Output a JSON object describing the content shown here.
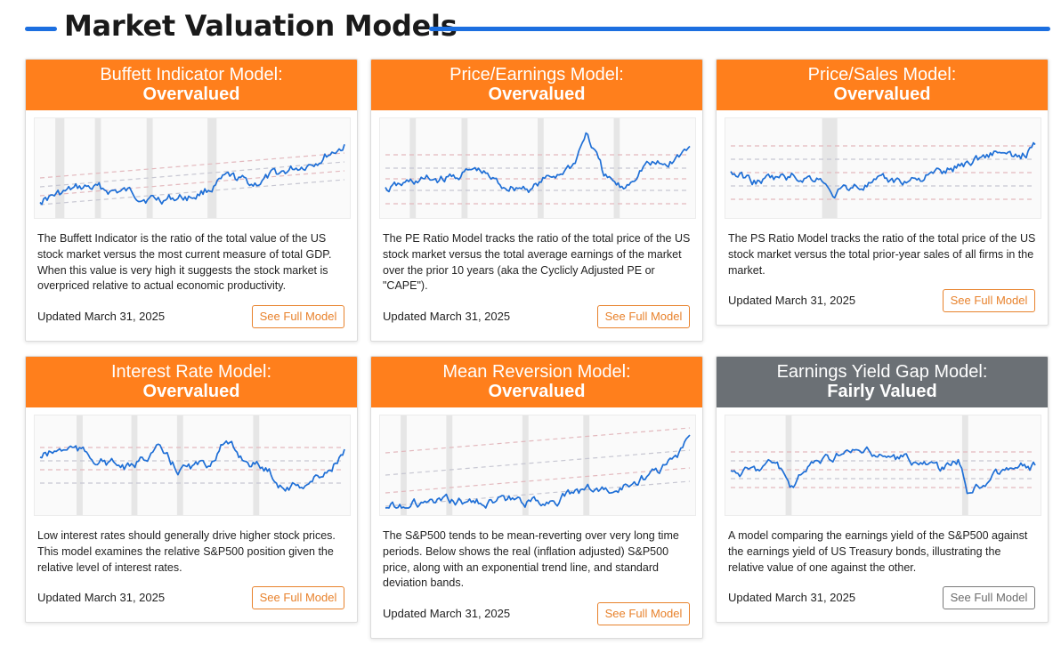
{
  "page": {
    "title": "Market Valuation Models"
  },
  "accent_colors": {
    "rule": "#1c6fe0",
    "overvalued": "#ff7f1c",
    "fairly_valued": "#6b7075",
    "line": "#1f6fd6"
  },
  "cards": [
    {
      "title": "Buffett Indicator Model:",
      "status": "Overvalued",
      "description": "The Buffett Indicator is the ratio of the total value of the US stock market versus the most current measure of total GDP. When this value is very high it suggests the stock market is overpriced relative to actual economic productivity.",
      "updated": "Updated March 31, 2025",
      "button": "See Full Model",
      "chart_icon": "buffett-indicator-chart"
    },
    {
      "title": "Price/Earnings Model:",
      "status": "Overvalued",
      "description": "The PE Ratio Model tracks the ratio of the total price of the US stock market versus the total average earnings of the market over the prior 10 years (aka the Cyclicly Adjusted PE or \"CAPE\").",
      "updated": "Updated March 31, 2025",
      "button": "See Full Model",
      "chart_icon": "pe-ratio-chart"
    },
    {
      "title": "Price/Sales Model:",
      "status": "Overvalued",
      "description": "The PS Ratio Model tracks the ratio of the total price of the US stock market versus the total prior-year sales of all firms in the market.",
      "updated": "Updated March 31, 2025",
      "button": "See Full Model",
      "chart_icon": "ps-ratio-chart"
    },
    {
      "title": "Interest Rate Model:",
      "status": "Overvalued",
      "description": "Low interest rates should generally drive higher stock prices. This model examines the relative S&P500 position given the relative level of interest rates.",
      "updated": "Updated March 31, 2025",
      "button": "See Full Model",
      "chart_icon": "interest-rate-chart"
    },
    {
      "title": "Mean Reversion Model:",
      "status": "Overvalued",
      "description": "The S&P500 tends to be mean-reverting over very long time periods. Below shows the real (inflation adjusted) S&P500 price, along with an exponential trend line, and standard deviation bands.",
      "updated": "Updated March 31, 2025",
      "button": "See Full Model",
      "chart_icon": "mean-reversion-chart"
    },
    {
      "title": "Earnings Yield Gap Model:",
      "status": "Fairly Valued",
      "description": "A model comparing the earnings yield of the S&P500 against the earnings yield of US Treasury bonds, illustrating the relative value of one against the other.",
      "updated": "Updated March 31, 2025",
      "button": "See Full Model",
      "chart_icon": "earnings-yield-gap-chart"
    }
  ]
}
